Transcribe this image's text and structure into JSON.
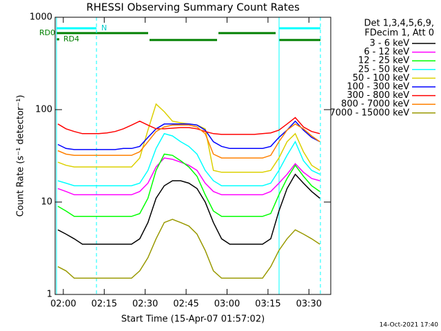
{
  "chart_data": {
    "type": "line",
    "title": "RHESSI Observing Summary Count Rates",
    "x_label": "Start Time (15-Apr-07 01:57:02)",
    "y_label": "Count Rate (s⁻¹ detector⁻¹)",
    "header": [
      "Det 1,3,4,5,6,9,",
      "FDecim 1, Att 0"
    ],
    "state_labels": [
      "N",
      "RD0",
      "RD4"
    ],
    "footer": "14-Oct-2021 17:40",
    "log_y": true,
    "xlim": [
      -3,
      98
    ],
    "ylim": [
      1,
      1000
    ],
    "xticks": [
      {
        "value": 0,
        "label": "02:00"
      },
      {
        "value": 15,
        "label": "02:15"
      },
      {
        "value": 30,
        "label": "02:30"
      },
      {
        "value": 45,
        "label": "02:45"
      },
      {
        "value": 60,
        "label": "03:00"
      },
      {
        "value": 75,
        "label": "03:15"
      },
      {
        "value": 90,
        "label": "03:30"
      }
    ],
    "yticks": [
      1,
      10,
      100,
      1000
    ],
    "x": [
      -2,
      1,
      4,
      7,
      10,
      13,
      16,
      19,
      22,
      25,
      28,
      31,
      34,
      37,
      40,
      43,
      46,
      49,
      52,
      55,
      58,
      61,
      64,
      67,
      70,
      73,
      76,
      79,
      82,
      85,
      88,
      91,
      94
    ],
    "series": [
      {
        "name": "3 - 6 keV",
        "color": "#000000",
        "values": [
          5,
          4.5,
          4,
          3.5,
          3.5,
          3.5,
          3.5,
          3.5,
          3.5,
          3.5,
          4,
          6,
          11,
          15,
          17,
          17,
          16,
          14,
          10,
          6,
          4,
          3.5,
          3.5,
          3.5,
          3.5,
          3.5,
          4,
          8,
          14,
          20,
          16,
          13,
          11
        ]
      },
      {
        "name": "6 - 12 keV",
        "color": "#ff00ff",
        "values": [
          14,
          13,
          12,
          12,
          12,
          12,
          12,
          12,
          12,
          12,
          13,
          16,
          24,
          30,
          29,
          27,
          25,
          22,
          16,
          13,
          12,
          12,
          12,
          12,
          12,
          12,
          13,
          16,
          20,
          26,
          21,
          18,
          17
        ]
      },
      {
        "name": "12 - 25 keV",
        "color": "#00ff00",
        "values": [
          9,
          8,
          7,
          7,
          7,
          7,
          7,
          7,
          7,
          7,
          7.5,
          11,
          22,
          33,
          32,
          28,
          24,
          19,
          12,
          8,
          7,
          7,
          7,
          7,
          7,
          7,
          7.5,
          12,
          18,
          25,
          19,
          15,
          13
        ]
      },
      {
        "name": "25 - 50 keV",
        "color": "#00ffff",
        "values": [
          17,
          16,
          15,
          15,
          15,
          15,
          15,
          15,
          15,
          15,
          16,
          22,
          38,
          55,
          52,
          45,
          40,
          33,
          22,
          17,
          15,
          15,
          15,
          15,
          15,
          15,
          16,
          22,
          32,
          45,
          28,
          22,
          20
        ]
      },
      {
        "name": "50 - 100 keV",
        "color": "#dcd000",
        "values": [
          27,
          25,
          24,
          24,
          24,
          24,
          24,
          24,
          24,
          24,
          30,
          60,
          115,
          95,
          75,
          72,
          70,
          68,
          62,
          22,
          21,
          21,
          21,
          21,
          21,
          21,
          22,
          30,
          45,
          55,
          35,
          25,
          22
        ]
      },
      {
        "name": "100 - 300 keV",
        "color": "#0000ff",
        "values": [
          42,
          38,
          37,
          37,
          37,
          37,
          37,
          37,
          38,
          38,
          40,
          50,
          62,
          70,
          70,
          70,
          70,
          68,
          60,
          45,
          40,
          38,
          38,
          38,
          38,
          38,
          40,
          50,
          60,
          75,
          60,
          50,
          45
        ]
      },
      {
        "name": "300 - 800 keV",
        "color": "#ff0000",
        "values": [
          70,
          62,
          58,
          55,
          55,
          55,
          56,
          58,
          62,
          68,
          75,
          68,
          62,
          62,
          63,
          64,
          64,
          62,
          58,
          55,
          54,
          54,
          54,
          54,
          54,
          55,
          56,
          60,
          70,
          82,
          65,
          58,
          55
        ]
      },
      {
        "name": "800 - 7000 keV",
        "color": "#ff8000",
        "values": [
          36,
          33,
          32,
          32,
          32,
          32,
          32,
          32,
          32,
          32,
          35,
          45,
          58,
          65,
          68,
          68,
          68,
          65,
          55,
          33,
          30,
          30,
          30,
          30,
          30,
          30,
          32,
          45,
          60,
          70,
          62,
          52,
          45
        ]
      },
      {
        "name": "7000 - 15000 keV",
        "color": "#999900",
        "values": [
          2,
          1.8,
          1.5,
          1.5,
          1.5,
          1.5,
          1.5,
          1.5,
          1.5,
          1.5,
          1.8,
          2.5,
          4,
          6,
          6.5,
          6,
          5.5,
          4.5,
          3,
          1.8,
          1.5,
          1.5,
          1.5,
          1.5,
          1.5,
          1.5,
          2,
          3,
          4,
          5,
          4.5,
          4,
          3.5
        ]
      }
    ]
  }
}
